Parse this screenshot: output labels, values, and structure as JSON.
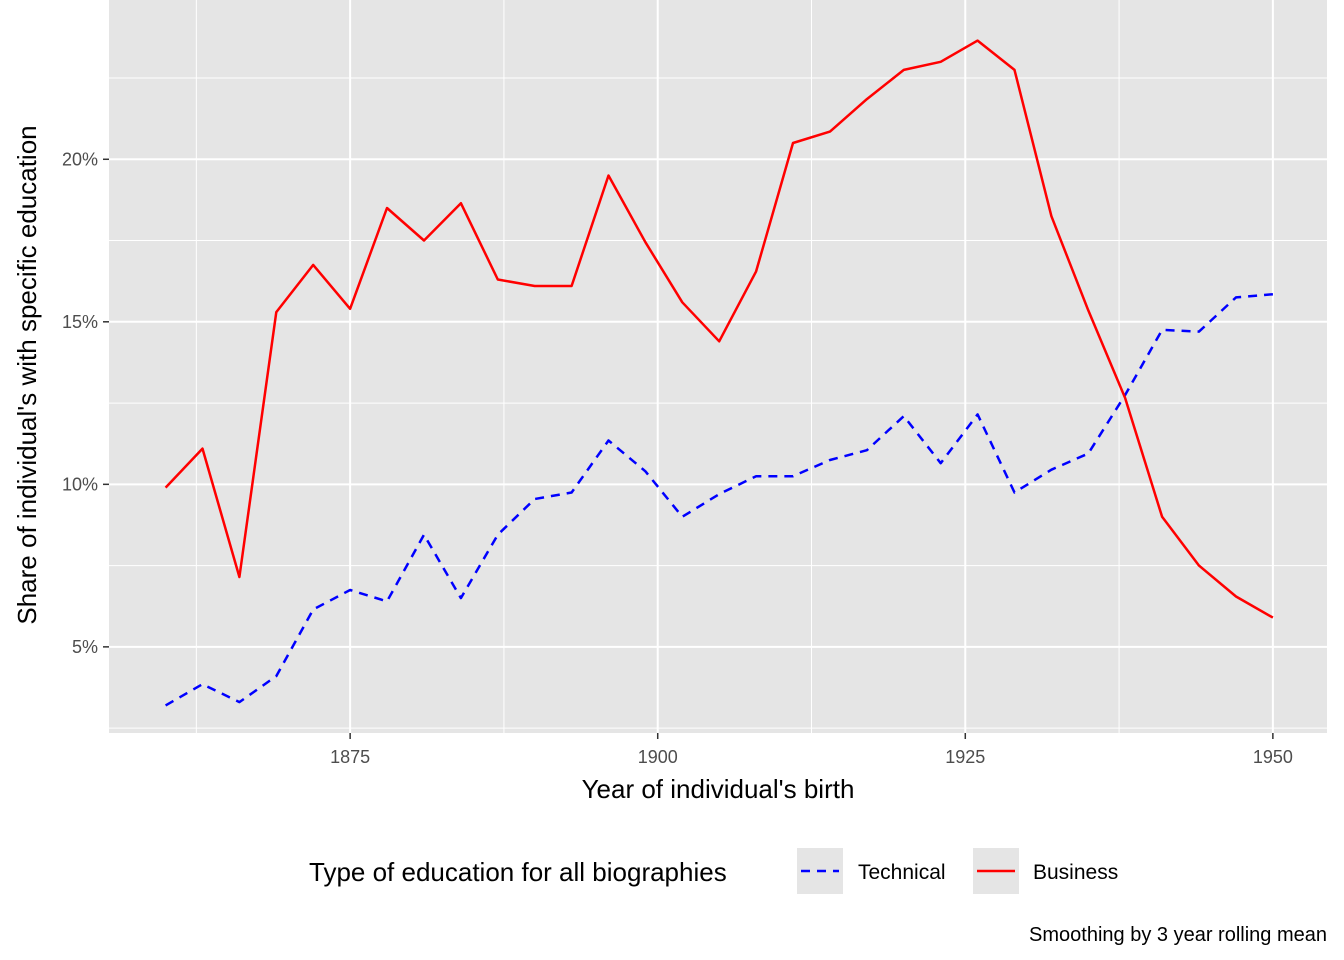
{
  "chart_data": {
    "type": "line",
    "xlabel": "Year of individual's birth",
    "ylabel": "Share of individual's with specific education",
    "caption": "Smoothing by 3 year rolling mean",
    "xlim": [
      1855.4,
      1954.4
    ],
    "ylim": [
      2.35,
      24.9
    ],
    "x_ticks": [
      1875,
      1900,
      1925,
      1950
    ],
    "x_tick_labels": [
      "1875",
      "1900",
      "1925",
      "1950"
    ],
    "x_minor_ticks": [
      1862.5,
      1887.5,
      1912.5,
      1937.5
    ],
    "y_ticks": [
      5,
      10,
      15,
      20
    ],
    "y_tick_labels": [
      "5%",
      "10%",
      "15%",
      "20%"
    ],
    "y_minor_ticks": [
      2.5,
      7.5,
      12.5,
      17.5,
      22.5
    ],
    "grid": true,
    "legend": {
      "title": "Type of education for all biographies",
      "position": "bottom",
      "items": [
        {
          "label": "Technical",
          "style": "dashed",
          "color": "#0000ff"
        },
        {
          "label": "Business",
          "style": "solid",
          "color": "#ff0000"
        }
      ]
    },
    "x": [
      1860,
      1863,
      1866,
      1869,
      1872,
      1875,
      1878,
      1881,
      1884,
      1887,
      1890,
      1893,
      1896,
      1899,
      1902,
      1905,
      1908,
      1911,
      1914,
      1917,
      1920,
      1923,
      1926,
      1929,
      1932,
      1935,
      1938,
      1941,
      1944,
      1947,
      1950
    ],
    "series": [
      {
        "name": "Technical",
        "color": "#0000ff",
        "dash": "dashed",
        "values": [
          3.2,
          3.85,
          3.3,
          4.1,
          6.15,
          6.75,
          6.4,
          8.45,
          6.5,
          8.45,
          9.55,
          9.75,
          11.35,
          10.4,
          9.0,
          9.7,
          10.25,
          10.25,
          10.75,
          11.05,
          12.1,
          10.65,
          12.15,
          9.75,
          10.45,
          10.95,
          12.75,
          14.75,
          14.7,
          15.75,
          15.85
        ]
      },
      {
        "name": "Business",
        "color": "#ff0000",
        "dash": "solid",
        "values": [
          9.9,
          11.1,
          7.15,
          15.3,
          16.75,
          15.4,
          18.5,
          17.5,
          18.65,
          16.3,
          16.1,
          16.1,
          19.5,
          17.45,
          15.6,
          14.4,
          16.55,
          20.5,
          20.85,
          21.85,
          22.75,
          23.0,
          23.65,
          22.75,
          18.25,
          15.35,
          12.65,
          9.0,
          7.5,
          6.55,
          5.9
        ]
      }
    ]
  }
}
